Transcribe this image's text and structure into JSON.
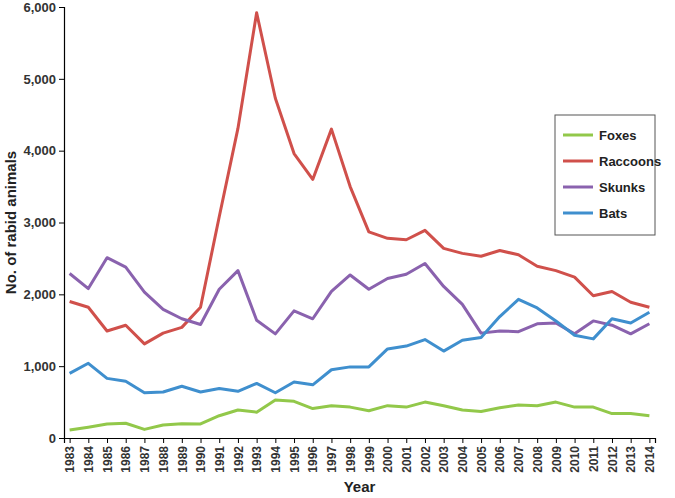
{
  "chart_data": {
    "type": "line",
    "x_label": "Year",
    "y_label": "No. of rabid animals",
    "categories": [
      "1983",
      "1984",
      "1985",
      "1986",
      "1987",
      "1988",
      "1989",
      "1990",
      "1991",
      "1992",
      "1993",
      "1994",
      "1995",
      "1996",
      "1997",
      "1998",
      "1999",
      "2000",
      "2001",
      "2002",
      "2003",
      "2004",
      "2005",
      "2006",
      "2007",
      "2008",
      "2009",
      "2010",
      "2011",
      "2012",
      "2013",
      "2014"
    ],
    "series": [
      {
        "name": "Foxes",
        "color": "#92c84a",
        "values": [
          110,
          150,
          195,
          205,
          120,
          180,
          200,
          195,
          310,
          390,
          360,
          530,
          510,
          410,
          450,
          430,
          380,
          450,
          430,
          500,
          450,
          390,
          370,
          420,
          460,
          450,
          500,
          430,
          430,
          340,
          340,
          310
        ]
      },
      {
        "name": "Raccoons",
        "color": "#d0504b",
        "values": [
          1900,
          1820,
          1490,
          1570,
          1310,
          1460,
          1540,
          1820,
          3080,
          4310,
          5920,
          4730,
          3960,
          3600,
          4300,
          3500,
          2870,
          2780,
          2760,
          2890,
          2640,
          2570,
          2530,
          2610,
          2550,
          2390,
          2330,
          2240,
          1980,
          2040,
          1890,
          1820
        ]
      },
      {
        "name": "Skunks",
        "color": "#8a62ae",
        "values": [
          2290,
          2080,
          2510,
          2380,
          2030,
          1790,
          1660,
          1580,
          2070,
          2330,
          1640,
          1450,
          1770,
          1660,
          2040,
          2270,
          2070,
          2220,
          2280,
          2430,
          2110,
          1860,
          1460,
          1490,
          1480,
          1590,
          1600,
          1450,
          1630,
          1570,
          1450,
          1590
        ]
      },
      {
        "name": "Bats",
        "color": "#3f8fce",
        "values": [
          900,
          1040,
          830,
          790,
          630,
          640,
          720,
          640,
          690,
          650,
          760,
          630,
          780,
          740,
          950,
          990,
          990,
          1240,
          1280,
          1370,
          1210,
          1360,
          1400,
          1690,
          1930,
          1810,
          1630,
          1430,
          1380,
          1660,
          1600,
          1750
        ]
      }
    ],
    "ylim": [
      0,
      6000
    ],
    "yticks": [
      0,
      {
        "value": 1000,
        "label": "1,000"
      },
      {
        "value": 2000,
        "label": "2,000"
      },
      {
        "value": 3000,
        "label": "3,000"
      },
      {
        "value": 4000,
        "label": "4,000"
      },
      {
        "value": 5000,
        "label": "5,000"
      },
      {
        "value": 6000,
        "label": "6,000"
      }
    ],
    "grid": false,
    "legend": "upper right"
  }
}
